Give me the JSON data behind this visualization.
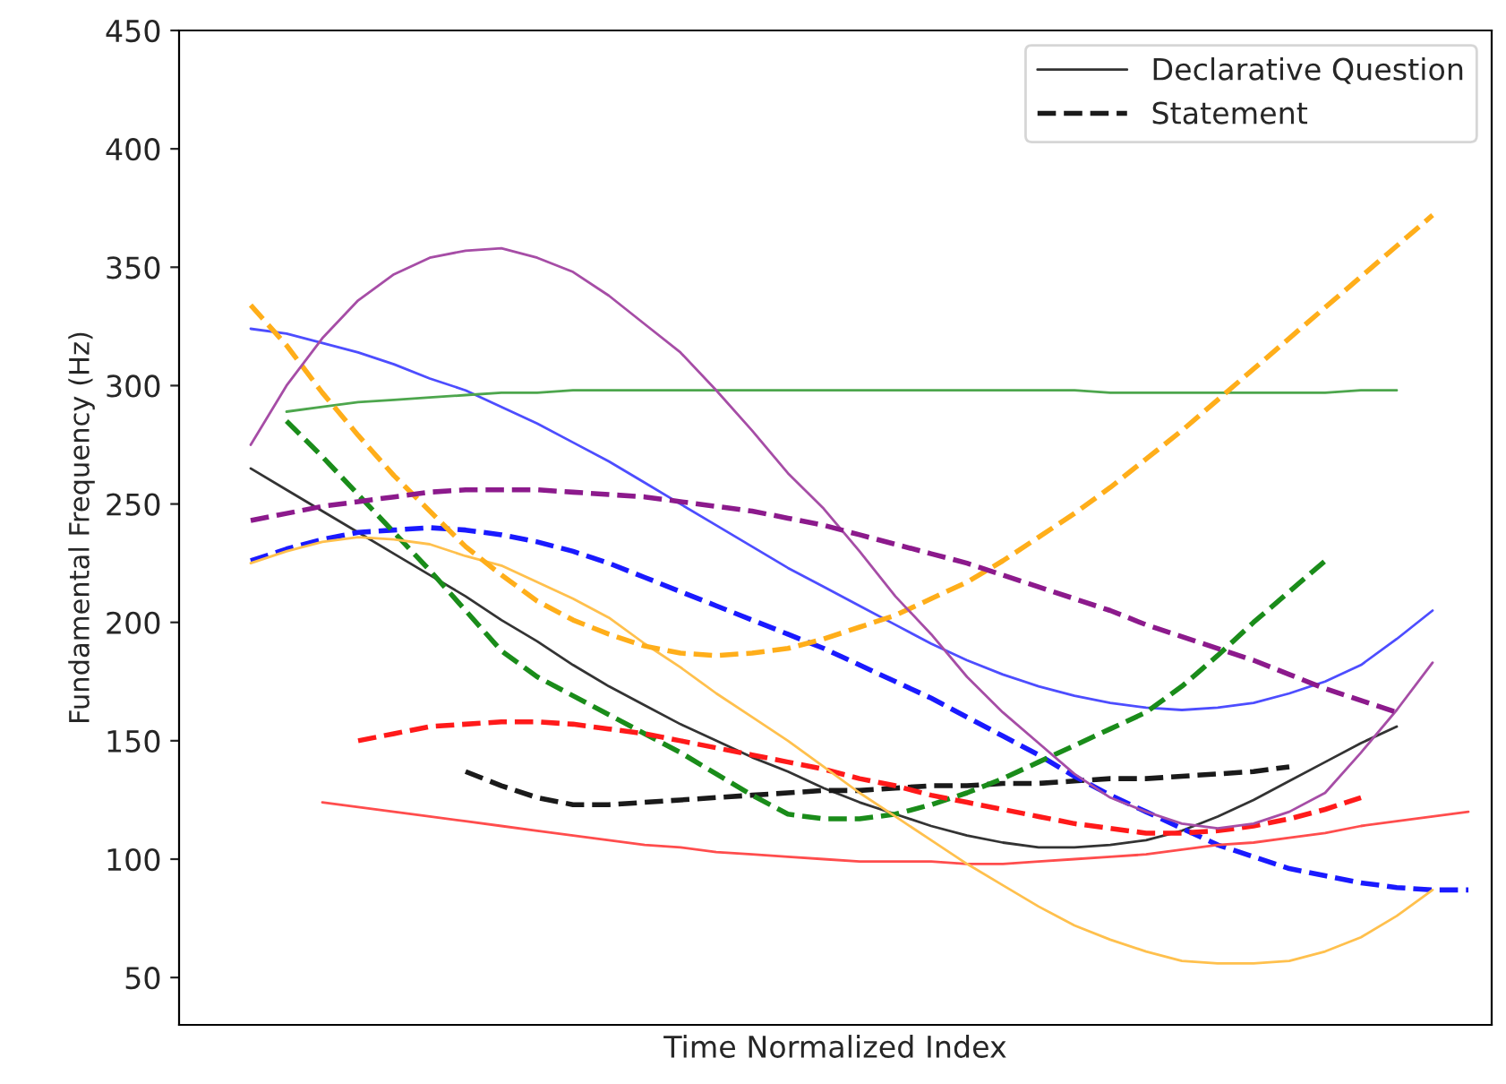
{
  "chart_data": {
    "type": "line",
    "xlabel": "Time Normalized Index",
    "ylabel": "Fundamental Frequency (Hz)",
    "categories": [
      null,
      null,
      null,
      null,
      null,
      null,
      null,
      null,
      null,
      null,
      null,
      null,
      null,
      null,
      null,
      null,
      null,
      null,
      null,
      null,
      null,
      null,
      null,
      null,
      null,
      null,
      null,
      null,
      null,
      null,
      null,
      null,
      null,
      null,
      null,
      null
    ],
    "ylim": [
      30,
      450
    ],
    "yticks": [
      50,
      100,
      150,
      200,
      250,
      300,
      350,
      400,
      450
    ],
    "tick_labels": "y",
    "grid": false,
    "legend": "top right",
    "marker": "none",
    "series": [
      {
        "name": "Declarative Question",
        "color": "#333333",
        "line_style": "solid",
        "values": [
          null,
          265,
          256,
          247,
          238,
          229,
          220,
          211,
          201,
          192,
          182,
          173,
          165,
          157,
          150,
          143,
          137,
          130,
          124,
          119,
          114,
          110,
          107,
          105,
          105,
          106,
          108,
          112,
          118,
          125,
          133,
          141,
          149,
          156,
          null,
          null
        ]
      },
      {
        "name": "Statement",
        "color": "#1a1a1a",
        "line_style": "dashed",
        "values": [
          null,
          null,
          null,
          null,
          null,
          null,
          null,
          137,
          131,
          126,
          123,
          123,
          124,
          125,
          126,
          127,
          128,
          129,
          129,
          130,
          131,
          131,
          132,
          132,
          133,
          134,
          134,
          135,
          136,
          137,
          139,
          null,
          null,
          null,
          null,
          null
        ]
      },
      {
        "color": "#4d4dff",
        "line_style": "solid",
        "values": [
          null,
          324,
          322,
          318,
          314,
          309,
          303,
          298,
          291,
          284,
          276,
          268,
          259,
          250,
          241,
          232,
          223,
          215,
          207,
          199,
          191,
          184,
          178,
          173,
          169,
          166,
          164,
          163,
          164,
          166,
          170,
          175,
          182,
          193,
          205,
          null
        ]
      },
      {
        "color": "#1a1aff",
        "line_style": "dashed",
        "values": [
          null,
          226,
          231,
          235,
          238,
          239,
          240,
          239,
          237,
          234,
          230,
          225,
          219,
          213,
          207,
          201,
          195,
          189,
          182,
          175,
          168,
          160,
          152,
          144,
          135,
          127,
          120,
          113,
          106,
          101,
          96,
          93,
          90,
          88,
          87,
          87
        ]
      },
      {
        "color": "#4da64d",
        "line_style": "solid",
        "values": [
          null,
          null,
          289,
          291,
          293,
          294,
          295,
          296,
          297,
          297,
          298,
          298,
          298,
          298,
          298,
          298,
          298,
          298,
          298,
          298,
          298,
          298,
          298,
          298,
          298,
          297,
          297,
          297,
          297,
          297,
          297,
          297,
          298,
          298,
          null,
          null
        ]
      },
      {
        "color": "#1a8c1a",
        "line_style": "dashed",
        "values": [
          null,
          null,
          285,
          270,
          254,
          238,
          222,
          205,
          188,
          177,
          169,
          161,
          153,
          145,
          136,
          127,
          119,
          117,
          117,
          119,
          123,
          128,
          134,
          141,
          148,
          155,
          162,
          173,
          186,
          200,
          213,
          226,
          null,
          null,
          null,
          null
        ]
      },
      {
        "color": "#ff4d4d",
        "line_style": "solid",
        "values": [
          null,
          null,
          null,
          124,
          122,
          120,
          118,
          116,
          114,
          112,
          110,
          108,
          106,
          105,
          103,
          102,
          101,
          100,
          99,
          99,
          99,
          98,
          98,
          99,
          100,
          101,
          102,
          104,
          106,
          107,
          109,
          111,
          114,
          116,
          118,
          120
        ]
      },
      {
        "color": "#ff1a1a",
        "line_style": "dashed",
        "values": [
          null,
          null,
          null,
          null,
          150,
          153,
          156,
          157,
          158,
          158,
          157,
          155,
          153,
          150,
          147,
          144,
          141,
          138,
          134,
          131,
          127,
          124,
          121,
          118,
          115,
          113,
          111,
          111,
          112,
          114,
          117,
          121,
          126,
          null,
          null,
          null
        ]
      },
      {
        "color": "#ffc04d",
        "line_style": "solid",
        "values": [
          null,
          225,
          230,
          234,
          236,
          235,
          233,
          228,
          224,
          217,
          210,
          202,
          191,
          181,
          170,
          160,
          150,
          139,
          128,
          118,
          108,
          98,
          89,
          80,
          72,
          66,
          61,
          57,
          56,
          56,
          57,
          61,
          67,
          76,
          87,
          null
        ]
      },
      {
        "color": "#ffae1a",
        "line_style": "dashed",
        "values": [
          null,
          334,
          317,
          297,
          279,
          262,
          247,
          232,
          220,
          209,
          201,
          195,
          190,
          187,
          186,
          187,
          189,
          193,
          198,
          203,
          210,
          217,
          226,
          236,
          246,
          257,
          269,
          281,
          294,
          307,
          320,
          333,
          346,
          359,
          372,
          null
        ]
      },
      {
        "color": "#a64da6",
        "line_style": "solid",
        "values": [
          null,
          275,
          300,
          320,
          336,
          347,
          354,
          357,
          358,
          354,
          348,
          338,
          326,
          314,
          298,
          281,
          263,
          248,
          230,
          211,
          195,
          177,
          162,
          149,
          136,
          126,
          120,
          115,
          113,
          115,
          120,
          128,
          145,
          163,
          183,
          null
        ]
      },
      {
        "color": "#8c1a8c",
        "line_style": "dashed",
        "values": [
          null,
          243,
          246,
          249,
          251,
          253,
          255,
          256,
          256,
          256,
          255,
          254,
          253,
          251,
          249,
          247,
          244,
          241,
          237,
          233,
          229,
          225,
          220,
          215,
          210,
          205,
          199,
          194,
          189,
          184,
          178,
          172,
          167,
          162,
          null,
          null
        ]
      }
    ]
  }
}
